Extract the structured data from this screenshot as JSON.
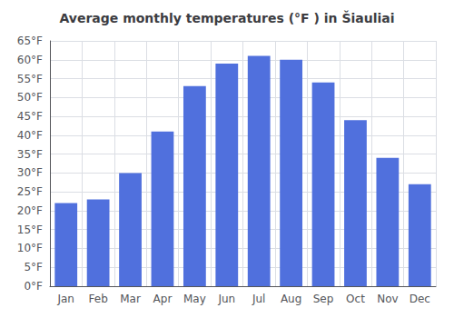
{
  "chart_data": {
    "type": "bar",
    "title": "Average monthly temperatures (°F ) in Šiauliai",
    "categories": [
      "Jan",
      "Feb",
      "Mar",
      "Apr",
      "May",
      "Jun",
      "Jul",
      "Aug",
      "Sep",
      "Oct",
      "Nov",
      "Dec"
    ],
    "values": [
      22,
      23,
      30,
      41,
      53,
      59,
      61,
      60,
      54,
      44,
      34,
      27
    ],
    "ylim": [
      0,
      65
    ],
    "yticks": [
      {
        "value": 0,
        "label": "0°F"
      },
      {
        "value": 5,
        "label": "5°F"
      },
      {
        "value": 10,
        "label": "10°F"
      },
      {
        "value": 15,
        "label": "15°F"
      },
      {
        "value": 20,
        "label": "20°F"
      },
      {
        "value": 25,
        "label": "25°F"
      },
      {
        "value": 30,
        "label": "30°F"
      },
      {
        "value": 35,
        "label": "35°F"
      },
      {
        "value": 40,
        "label": "40°F"
      },
      {
        "value": 45,
        "label": "45°F"
      },
      {
        "value": 50,
        "label": "50°F"
      },
      {
        "value": 55,
        "label": "55°F"
      },
      {
        "value": 60,
        "label": "60°F"
      },
      {
        "value": 65,
        "label": "65°F"
      }
    ],
    "grid": true
  }
}
